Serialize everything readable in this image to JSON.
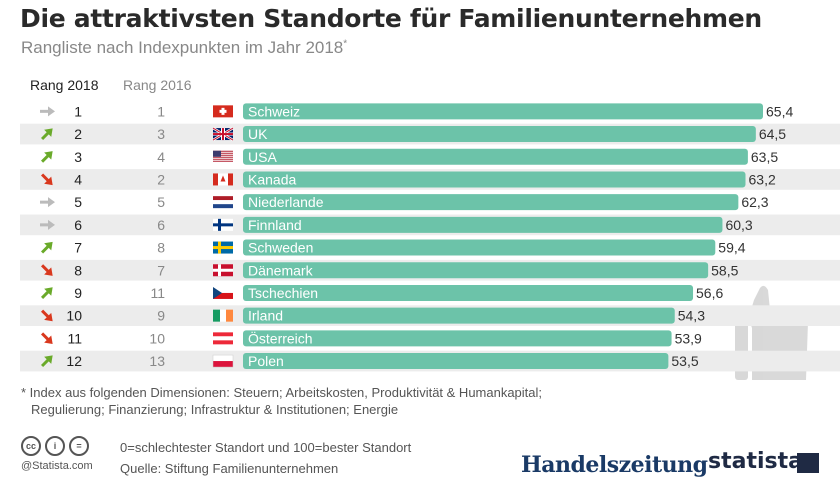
{
  "title": "Die attraktivsten Standorte für Familienunternehmen",
  "subtitle": "Rangliste nach Indexpunkten im Jahr 2018",
  "subtitle_mark": "*",
  "columns": {
    "rank_2018": "Rang 2018",
    "rank_2016": "Rang 2016"
  },
  "colors": {
    "bar": "#6cc3a9",
    "row_shade": "#ececec",
    "arrow_up": "#6aaa2a",
    "arrow_down": "#d9381e",
    "arrow_same": "#bbbbbb"
  },
  "chart_data": {
    "type": "bar",
    "orientation": "horizontal",
    "categories": [
      "Schweiz",
      "UK",
      "USA",
      "Kanada",
      "Niederlande",
      "Finnland",
      "Schweden",
      "Dänemark",
      "Tschechien",
      "Irland",
      "Österreich",
      "Polen"
    ],
    "values": [
      65.4,
      64.5,
      63.5,
      63.2,
      62.3,
      60.3,
      59.4,
      58.5,
      56.6,
      54.3,
      53.9,
      53.5
    ],
    "value_labels": [
      "65,4",
      "64,5",
      "63,5",
      "63,2",
      "62,3",
      "60,3",
      "59,4",
      "58,5",
      "56,6",
      "54,3",
      "53,9",
      "53,5"
    ],
    "rank_2018": [
      "1",
      "2",
      "3",
      "4",
      "5",
      "6",
      "7",
      "8",
      "9",
      "10",
      "11",
      "12"
    ],
    "rank_2016": [
      "1",
      "3",
      "4",
      "2",
      "5",
      "6",
      "8",
      "7",
      "11",
      "9",
      "10",
      "13"
    ],
    "trend": [
      "same",
      "up",
      "up",
      "down",
      "same",
      "same",
      "up",
      "down",
      "up",
      "down",
      "down",
      "up"
    ],
    "flags": [
      "flag-switzerland",
      "flag-uk",
      "flag-usa",
      "flag-canada",
      "flag-netherlands",
      "flag-finland",
      "flag-sweden",
      "flag-denmark",
      "flag-czech",
      "flag-ireland",
      "flag-austria",
      "flag-poland"
    ],
    "xlim": [
      0,
      65.4
    ],
    "grid": false
  },
  "decoration": {
    "background_icon": "thumbs-up-icon"
  },
  "footnote": {
    "line1": "* Index aus folgenden Dimensionen: Steuern; Arbeitskosten, Produktivität & Humankapital;",
    "line2": "Regulierung; Finanzierung; Infrastruktur & Institutionen; Energie"
  },
  "scale_note": "0=schlechtester Standort und 100=bester Standort",
  "source": "Quelle: Stiftung Familienunternehmen",
  "license_icons": [
    "cc-icon",
    "by-icon",
    "equals-icon"
  ],
  "license_labels": [
    "cc",
    "i",
    "="
  ],
  "copyright": "@Statista.com",
  "logos": {
    "partner": "Handelszeitung",
    "brand": "statista"
  }
}
